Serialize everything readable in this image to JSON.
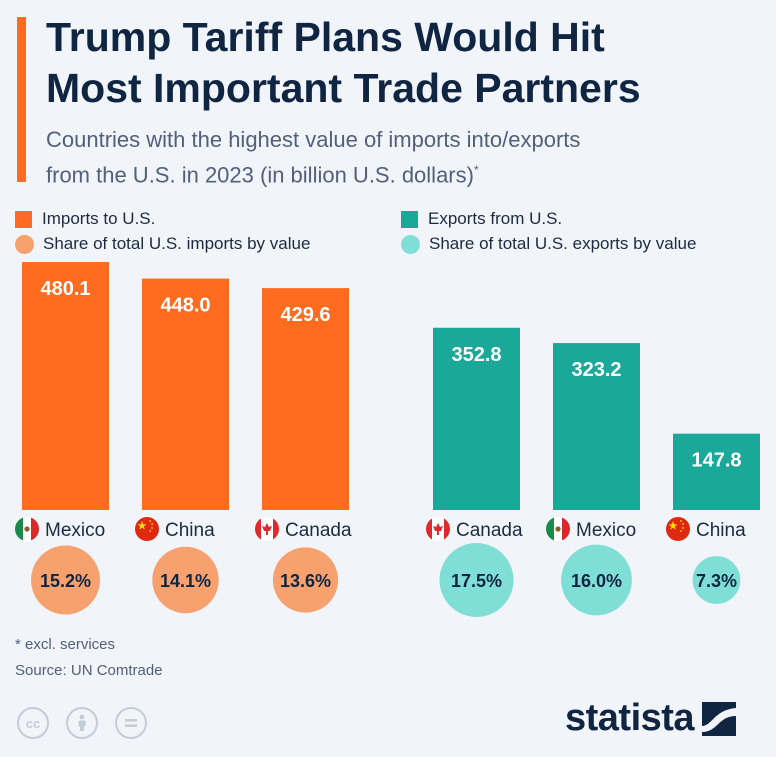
{
  "title_line1": "Trump Tariff Plans Would Hit",
  "title_line2": "Most Important Trade Partners",
  "subtitle_line1": "Countries with the highest value of imports into/exports",
  "subtitle_line2": "from the U.S. in 2023 (in billion U.S. dollars)",
  "subtitle_marker": "*",
  "legend": {
    "imports_bar": "Imports to U.S.",
    "imports_share": "Share of total U.S. imports by value",
    "exports_bar": "Exports from U.S.",
    "exports_share": "Share of total U.S. exports by value"
  },
  "colors": {
    "imports_bar": "#ff6b1f",
    "imports_share": "#f7a16f",
    "exports_bar": "#1aa898",
    "exports_share": "#7fdfd7",
    "title": "#0f2541"
  },
  "chart_data": {
    "type": "bar",
    "series": [
      {
        "name": "Imports to U.S.",
        "categories": [
          "Mexico",
          "China",
          "Canada"
        ],
        "values": [
          480.1,
          448.0,
          429.6
        ],
        "value_labels": [
          "480.1",
          "448.0",
          "429.6"
        ],
        "shares": [
          15.2,
          14.1,
          13.6
        ],
        "share_labels": [
          "15.2%",
          "14.1%",
          "13.6%"
        ],
        "flags": [
          "mexico-flag-icon",
          "china-flag-icon",
          "canada-flag-icon"
        ]
      },
      {
        "name": "Exports from U.S.",
        "categories": [
          "Canada",
          "Mexico",
          "China"
        ],
        "values": [
          352.8,
          323.2,
          147.8
        ],
        "value_labels": [
          "352.8",
          "323.2",
          "147.8"
        ],
        "shares": [
          17.5,
          16.0,
          7.3
        ],
        "share_labels": [
          "17.5%",
          "16.0%",
          "7.3%"
        ],
        "flags": [
          "canada-flag-icon",
          "mexico-flag-icon",
          "china-flag-icon"
        ]
      }
    ],
    "grid": false,
    "legend_position": "top"
  },
  "footnote": "* excl. services",
  "source": "Source: UN Comtrade",
  "license_icons": [
    "cc-icon",
    "attribution-icon",
    "no-derivatives-icon"
  ],
  "brand": "statista"
}
